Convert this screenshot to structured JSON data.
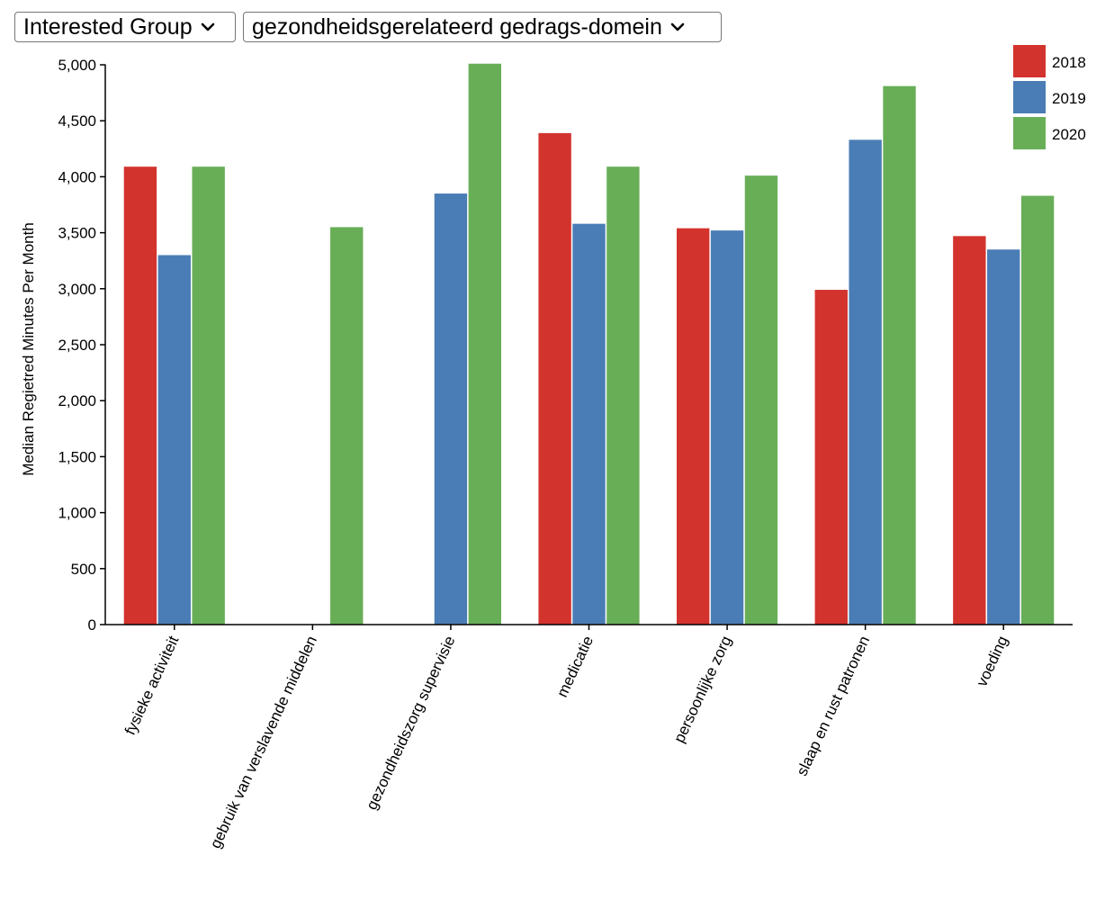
{
  "controls": {
    "group_select": "Interested Group",
    "domain_select": "gezondheidsgerelateerd gedrags-domein"
  },
  "chart_data": {
    "type": "bar",
    "ylabel": "Median Regietred Minutes Per Month",
    "xlabel": "",
    "ylim": [
      0,
      5000
    ],
    "y_ticks": [
      0,
      500,
      1000,
      1500,
      2000,
      2500,
      3000,
      3500,
      4000,
      4500,
      5000
    ],
    "y_tick_labels": [
      "0",
      "500",
      "1,000",
      "1,500",
      "2,000",
      "2,500",
      "3,000",
      "3,500",
      "4,000",
      "4,500",
      "5,000"
    ],
    "categories": [
      "fysieke activiteit",
      "gebruik van verslavende middelen",
      "gezondheidszorg supervisie",
      "medicatie",
      "persoonlijke zorg",
      "slaap en rust patronen",
      "voeding"
    ],
    "series": [
      {
        "name": "2018",
        "color": "#d3332d",
        "values": [
          4090,
          null,
          null,
          4390,
          3540,
          2990,
          3470
        ]
      },
      {
        "name": "2019",
        "color": "#4a7db5",
        "values": [
          3300,
          null,
          3850,
          3580,
          3520,
          4330,
          3350
        ]
      },
      {
        "name": "2020",
        "color": "#68ae57",
        "values": [
          4090,
          3550,
          5010,
          4090,
          4010,
          4810,
          3830
        ]
      }
    ],
    "legend_position": "top-right",
    "grid": false
  }
}
